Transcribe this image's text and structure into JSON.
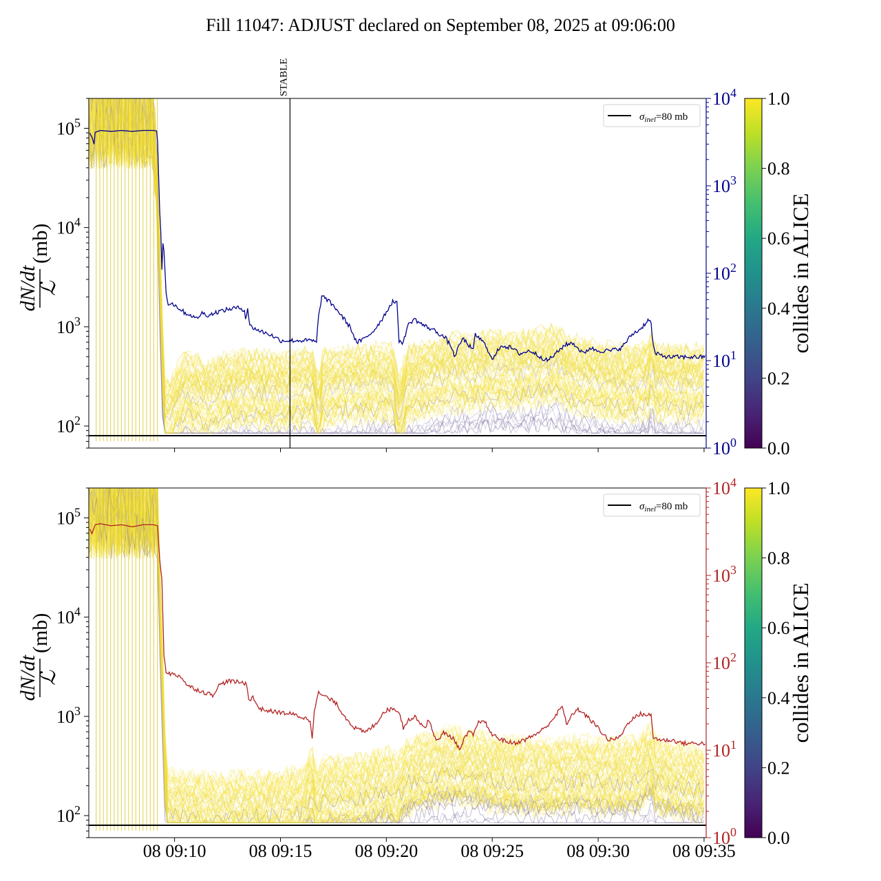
{
  "chart_data": {
    "title": "Fill 11047: ADJUST declared on September 08, 2025 at 09:06:00",
    "type": "line",
    "x_ticks": [
      "08 09:10",
      "08 09:15",
      "08 09:20",
      "08 09:25",
      "08 09:30",
      "08 09:35"
    ],
    "x_tick_minutes": [
      10,
      15,
      20,
      25,
      30,
      35
    ],
    "xlim_minutes": [
      5.95,
      35.1
    ],
    "x_unit": "minutes after 08 09:00",
    "stable_marker": {
      "label": "STABLE",
      "minute": 15.45
    },
    "colorbar": {
      "label": "collides in ALICE",
      "ticks": [
        "0.0",
        "0.2",
        "0.4",
        "0.6",
        "0.8",
        "1.0"
      ],
      "colormap": "viridis"
    },
    "panels": [
      {
        "ylabel_fraction_num": "dN/dt",
        "ylabel_fraction_den": "ℒ",
        "ylabel_unit": "(mb)",
        "yscale": "log",
        "ylim": [
          60,
          200000
        ],
        "y_ticks": [
          100,
          1000,
          10000,
          100000
        ],
        "y_tick_exponents": [
          "2",
          "3",
          "4",
          "5"
        ],
        "right_yscale": "log",
        "right_ylim": [
          1,
          10000
        ],
        "right_y_tick_exponents": [
          "0",
          "1",
          "2",
          "3",
          "4"
        ],
        "right_axis_color": "#00008b",
        "reference_line": {
          "label_sym": "σ",
          "label_sub": "inel",
          "label_rest": "=80 mb",
          "value": 80
        },
        "right_series": {
          "color": "#00008b",
          "points": [
            [
              6.0,
              4000
            ],
            [
              6.1,
              3600
            ],
            [
              6.2,
              3000
            ],
            [
              6.25,
              4100
            ],
            [
              6.5,
              4300
            ],
            [
              7.0,
              4200
            ],
            [
              7.5,
              4300
            ],
            [
              8.0,
              4200
            ],
            [
              8.5,
              4300
            ],
            [
              9.0,
              4300
            ],
            [
              9.15,
              4250
            ],
            [
              9.2,
              3200
            ],
            [
              9.3,
              500
            ],
            [
              9.35,
              300
            ],
            [
              9.4,
              110
            ],
            [
              9.45,
              220
            ],
            [
              9.5,
              180
            ],
            [
              9.6,
              60
            ],
            [
              9.7,
              45
            ],
            [
              9.9,
              45
            ],
            [
              10.2,
              40
            ],
            [
              10.5,
              35
            ],
            [
              10.8,
              33
            ],
            [
              11.0,
              30
            ],
            [
              11.3,
              35
            ],
            [
              11.6,
              33
            ],
            [
              12.0,
              36
            ],
            [
              12.4,
              38
            ],
            [
              12.8,
              40
            ],
            [
              13.1,
              40
            ],
            [
              13.3,
              38
            ],
            [
              13.35,
              30
            ],
            [
              13.45,
              40
            ],
            [
              13.55,
              25
            ],
            [
              14.0,
              22
            ],
            [
              14.5,
              20
            ],
            [
              15.0,
              17
            ],
            [
              15.5,
              17
            ],
            [
              16.0,
              17
            ],
            [
              16.5,
              17
            ],
            [
              16.7,
              16
            ],
            [
              16.8,
              32
            ],
            [
              16.95,
              55
            ],
            [
              17.2,
              50
            ],
            [
              17.6,
              40
            ],
            [
              18.0,
              30
            ],
            [
              18.3,
              24
            ],
            [
              18.6,
              16
            ],
            [
              19.0,
              18
            ],
            [
              19.4,
              22
            ],
            [
              19.8,
              30
            ],
            [
              20.3,
              48
            ],
            [
              20.5,
              45
            ],
            [
              20.6,
              17
            ],
            [
              20.8,
              16
            ],
            [
              21.0,
              25
            ],
            [
              21.3,
              30
            ],
            [
              21.8,
              25
            ],
            [
              22.3,
              22
            ],
            [
              22.8,
              18
            ],
            [
              23.1,
              14
            ],
            [
              23.2,
              11
            ],
            [
              23.4,
              14
            ],
            [
              23.6,
              18
            ],
            [
              23.9,
              15
            ],
            [
              24.1,
              13
            ],
            [
              24.2,
              20
            ],
            [
              24.6,
              16
            ],
            [
              24.9,
              12
            ],
            [
              25.0,
              10
            ],
            [
              25.4,
              15
            ],
            [
              25.9,
              14
            ],
            [
              26.3,
              12
            ],
            [
              26.8,
              13
            ],
            [
              27.3,
              11
            ],
            [
              27.6,
              10
            ],
            [
              28.0,
              12
            ],
            [
              28.4,
              15
            ],
            [
              28.8,
              16
            ],
            [
              29.3,
              12
            ],
            [
              29.6,
              14
            ],
            [
              30.0,
              13
            ],
            [
              30.6,
              13
            ],
            [
              31.1,
              14
            ],
            [
              31.6,
              20
            ],
            [
              32.0,
              23
            ],
            [
              32.4,
              30
            ],
            [
              32.5,
              26
            ],
            [
              32.6,
              15
            ],
            [
              32.7,
              12
            ],
            [
              33.3,
              11
            ],
            [
              34.0,
              11
            ],
            [
              35.1,
              11
            ]
          ]
        },
        "band_guide": [
          [
            6.0,
            120000
          ],
          [
            9.0,
            120000
          ],
          [
            9.2,
            20000
          ],
          [
            9.4,
            800
          ],
          [
            9.5,
            130
          ],
          [
            9.7,
            120
          ],
          [
            10.5,
            230
          ],
          [
            11.0,
            210
          ],
          [
            11.5,
            180
          ],
          [
            12.5,
            230
          ],
          [
            13.5,
            240
          ],
          [
            14.5,
            220
          ],
          [
            15.5,
            230
          ],
          [
            16.5,
            260
          ],
          [
            16.8,
            130
          ],
          [
            17.0,
            240
          ],
          [
            18.0,
            260
          ],
          [
            19.0,
            260
          ],
          [
            20.3,
            280
          ],
          [
            20.6,
            130
          ],
          [
            21.0,
            260
          ],
          [
            22.0,
            300
          ],
          [
            23.0,
            350
          ],
          [
            24.0,
            340
          ],
          [
            25.0,
            380
          ],
          [
            26.0,
            350
          ],
          [
            27.0,
            380
          ],
          [
            28.0,
            420
          ],
          [
            28.5,
            350
          ],
          [
            29.5,
            300
          ],
          [
            30.5,
            280
          ],
          [
            31.5,
            260
          ],
          [
            32.4,
            300
          ],
          [
            32.5,
            420
          ],
          [
            32.7,
            280
          ],
          [
            33.5,
            270
          ],
          [
            35.1,
            260
          ]
        ]
      },
      {
        "ylabel_fraction_num": "dN/dt",
        "ylabel_fraction_den": "ℒ",
        "ylabel_unit": "(mb)",
        "yscale": "log",
        "ylim": [
          60,
          200000
        ],
        "y_ticks": [
          100,
          1000,
          10000,
          100000
        ],
        "y_tick_exponents": [
          "2",
          "3",
          "4",
          "5"
        ],
        "right_yscale": "log",
        "right_ylim": [
          1,
          10000
        ],
        "right_y_tick_exponents": [
          "0",
          "1",
          "2",
          "3",
          "4"
        ],
        "right_axis_color": "#b22222",
        "reference_line": {
          "label_sym": "σ",
          "label_sub": "inel",
          "label_rest": "=80 mb",
          "value": 80
        },
        "right_series": {
          "color": "#b22222",
          "points": [
            [
              6.0,
              3400
            ],
            [
              6.1,
              3000
            ],
            [
              6.25,
              3800
            ],
            [
              6.5,
              3900
            ],
            [
              7.0,
              3700
            ],
            [
              7.5,
              3800
            ],
            [
              8.0,
              3600
            ],
            [
              8.5,
              3800
            ],
            [
              9.0,
              3800
            ],
            [
              9.2,
              3700
            ],
            [
              9.3,
              1500
            ],
            [
              9.4,
              900
            ],
            [
              9.5,
              120
            ],
            [
              9.6,
              80
            ],
            [
              9.8,
              75
            ],
            [
              10.3,
              70
            ],
            [
              10.6,
              55
            ],
            [
              11.0,
              50
            ],
            [
              11.5,
              45
            ],
            [
              11.8,
              43
            ],
            [
              12.1,
              55
            ],
            [
              12.5,
              62
            ],
            [
              13.0,
              60
            ],
            [
              13.4,
              58
            ],
            [
              13.5,
              38
            ],
            [
              13.7,
              40
            ],
            [
              14.0,
              30
            ],
            [
              14.5,
              28
            ],
            [
              15.0,
              27
            ],
            [
              15.5,
              26
            ],
            [
              16.0,
              24
            ],
            [
              16.4,
              22
            ],
            [
              16.5,
              14
            ],
            [
              16.6,
              30
            ],
            [
              16.8,
              45
            ],
            [
              17.2,
              40
            ],
            [
              17.6,
              35
            ],
            [
              18.0,
              25
            ],
            [
              18.5,
              18
            ],
            [
              19.0,
              16
            ],
            [
              19.5,
              20
            ],
            [
              19.9,
              28
            ],
            [
              20.3,
              30
            ],
            [
              20.6,
              28
            ],
            [
              20.8,
              18
            ],
            [
              21.0,
              22
            ],
            [
              21.4,
              24
            ],
            [
              21.8,
              18
            ],
            [
              22.0,
              22
            ],
            [
              22.3,
              14
            ],
            [
              22.5,
              13
            ],
            [
              22.7,
              16
            ],
            [
              22.9,
              15
            ],
            [
              23.1,
              14
            ],
            [
              23.3,
              12
            ],
            [
              23.5,
              10
            ],
            [
              23.7,
              14
            ],
            [
              23.9,
              16
            ],
            [
              24.1,
              15
            ],
            [
              24.4,
              22
            ],
            [
              24.7,
              20
            ],
            [
              25.0,
              15
            ],
            [
              25.5,
              13
            ],
            [
              26.0,
              12
            ],
            [
              26.5,
              13
            ],
            [
              27.0,
              15
            ],
            [
              27.5,
              18
            ],
            [
              28.0,
              25
            ],
            [
              28.3,
              32
            ],
            [
              28.5,
              20
            ],
            [
              29.0,
              30
            ],
            [
              29.5,
              24
            ],
            [
              30.0,
              18
            ],
            [
              30.5,
              13
            ],
            [
              31.0,
              14
            ],
            [
              31.5,
              22
            ],
            [
              32.0,
              26
            ],
            [
              32.5,
              25
            ],
            [
              32.6,
              14
            ],
            [
              33.0,
              13
            ],
            [
              33.5,
              13
            ],
            [
              34.0,
              12
            ],
            [
              35.1,
              12
            ]
          ]
        },
        "band_guide": [
          [
            6.0,
            120000
          ],
          [
            9.2,
            120000
          ],
          [
            9.3,
            15000
          ],
          [
            9.5,
            700
          ],
          [
            9.6,
            120
          ],
          [
            10.0,
            115
          ],
          [
            11.0,
            110
          ],
          [
            12.0,
            105
          ],
          [
            13.0,
            110
          ],
          [
            14.0,
            110
          ],
          [
            15.0,
            115
          ],
          [
            16.0,
            120
          ],
          [
            16.5,
            200
          ],
          [
            16.7,
            120
          ],
          [
            17.0,
            160
          ],
          [
            18.0,
            160
          ],
          [
            19.0,
            170
          ],
          [
            20.0,
            200
          ],
          [
            20.5,
            170
          ],
          [
            21.0,
            240
          ],
          [
            22.0,
            280
          ],
          [
            23.0,
            310
          ],
          [
            24.0,
            300
          ],
          [
            25.0,
            260
          ],
          [
            26.0,
            250
          ],
          [
            27.0,
            240
          ],
          [
            28.0,
            240
          ],
          [
            29.0,
            260
          ],
          [
            30.0,
            240
          ],
          [
            31.0,
            240
          ],
          [
            32.0,
            260
          ],
          [
            32.5,
            360
          ],
          [
            32.7,
            250
          ],
          [
            33.5,
            220
          ],
          [
            35.1,
            200
          ]
        ]
      }
    ]
  }
}
